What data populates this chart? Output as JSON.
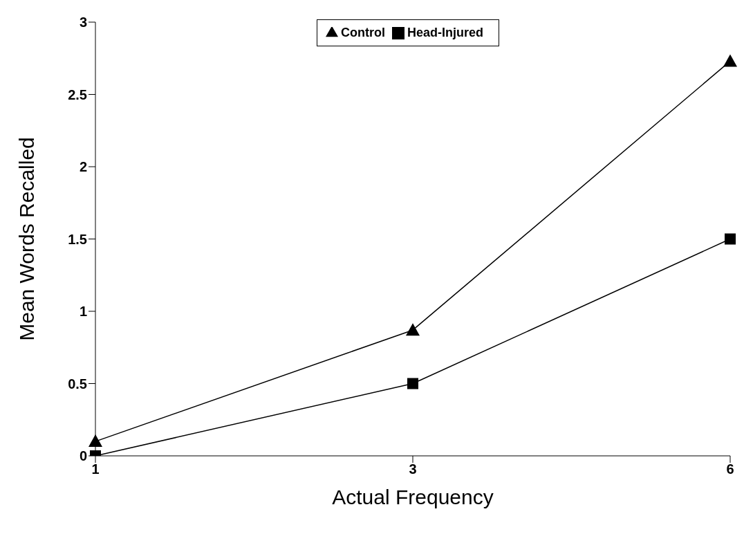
{
  "chart_data": {
    "type": "line",
    "xlabel": "Actual Frequency",
    "ylabel": "Mean Words Recalled",
    "categories": [
      "1",
      "3",
      "6"
    ],
    "series": [
      {
        "name": "Head-Injured",
        "color": "#000000",
        "marker": "square",
        "values": [
          0.0,
          0.5,
          1.5
        ]
      },
      {
        "name": "Control",
        "color": "#000000",
        "marker": "triangle",
        "values": [
          0.1,
          0.87,
          2.73
        ]
      }
    ],
    "ylim": [
      0,
      3
    ],
    "yticks": [
      0,
      0.5,
      1,
      1.5,
      2,
      2.5,
      3
    ],
    "grid": false,
    "legend": "top",
    "line_style": "solid"
  }
}
